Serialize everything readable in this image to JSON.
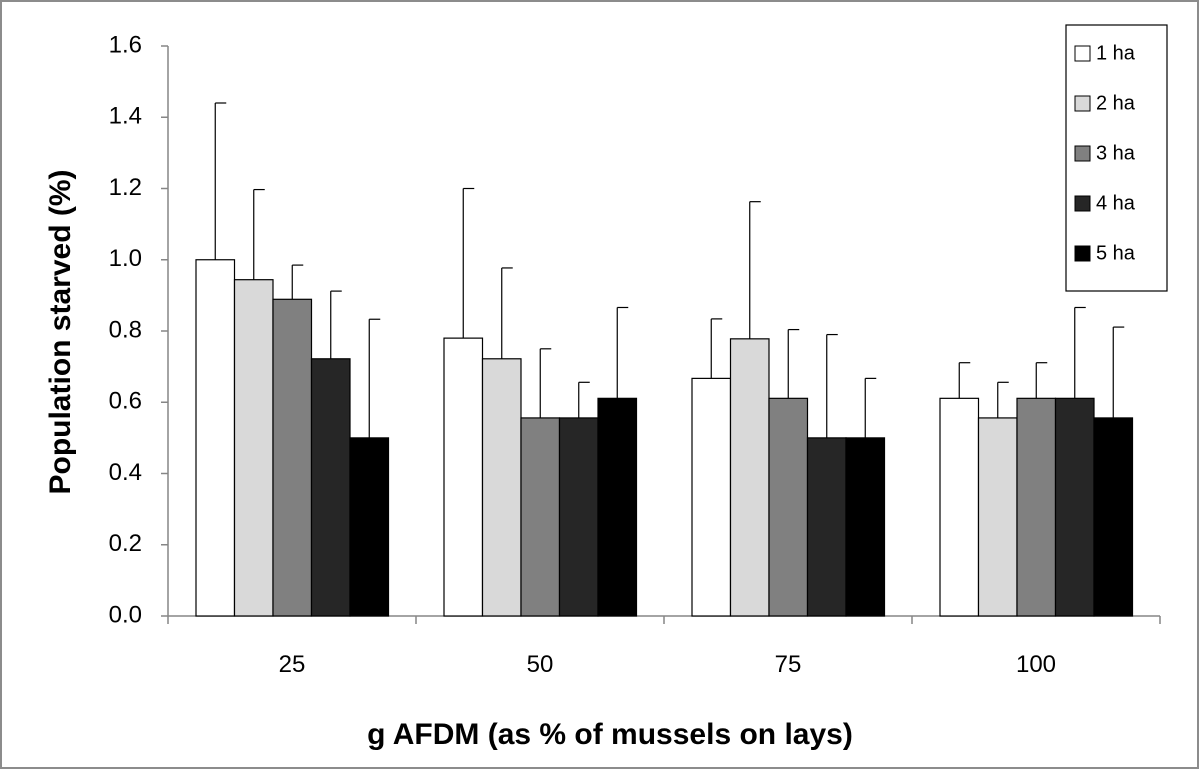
{
  "chart_data": {
    "type": "bar",
    "title": "",
    "xlabel": "g AFDM (as % of mussels on lays)",
    "ylabel": "Population starved (%)",
    "ylim": [
      0,
      1.6
    ],
    "yticks": [
      "0.0",
      "0.2",
      "0.4",
      "0.6",
      "0.8",
      "1.0",
      "1.2",
      "1.4",
      "1.6"
    ],
    "categories": [
      "25",
      "50",
      "75",
      "100"
    ],
    "grid": false,
    "legend_position": "top-right",
    "error_bars": "positive",
    "series": [
      {
        "name": "1 ha",
        "color": "#ffffff",
        "values": [
          1.0,
          0.78,
          0.667,
          0.611
        ],
        "errors": [
          0.44,
          0.42,
          0.167,
          0.1
        ]
      },
      {
        "name": "2 ha",
        "color": "#d9d9d9",
        "values": [
          0.944,
          0.722,
          0.778,
          0.556
        ],
        "errors": [
          0.253,
          0.255,
          0.385,
          0.1
        ]
      },
      {
        "name": "3 ha",
        "color": "#808080",
        "values": [
          0.889,
          0.556,
          0.611,
          0.611
        ],
        "errors": [
          0.096,
          0.194,
          0.193,
          0.1
        ]
      },
      {
        "name": "4 ha",
        "color": "#262626",
        "values": [
          0.722,
          0.556,
          0.5,
          0.611
        ],
        "errors": [
          0.19,
          0.1,
          0.29,
          0.255
        ]
      },
      {
        "name": "5 ha",
        "color": "#000000",
        "values": [
          0.5,
          0.611,
          0.5,
          0.556
        ],
        "errors": [
          0.333,
          0.255,
          0.167,
          0.255
        ]
      }
    ]
  }
}
